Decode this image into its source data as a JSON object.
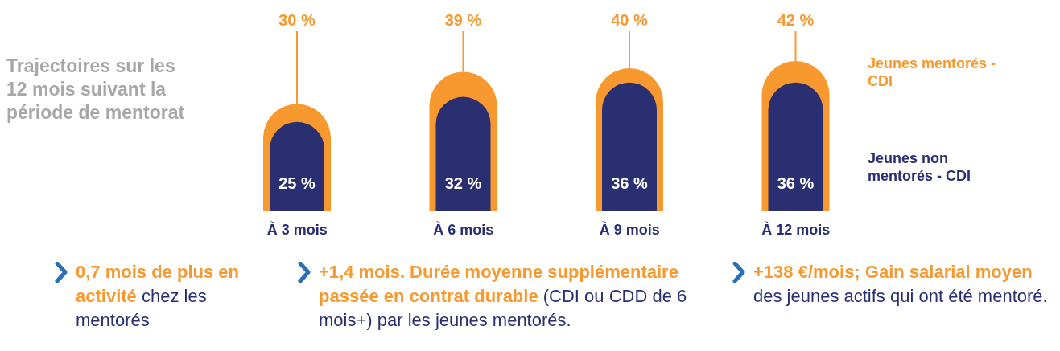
{
  "chart_data": {
    "type": "bar",
    "title": "Trajectoires sur les 12 mois suivant la période de mentorat",
    "categories": [
      "À 3 mois",
      "À 6 mois",
      "À 9 mois",
      "À 12 mois"
    ],
    "series": [
      {
        "name": "Jeunes mentorés - CDI",
        "color": "#f7992f",
        "values": [
          30,
          39,
          40,
          42
        ],
        "value_labels": [
          "30 %",
          "39 %",
          "40 %",
          "42 %"
        ]
      },
      {
        "name": "Jeunes non mentorés - CDI",
        "color": "#2a2f72",
        "values": [
          25,
          32,
          36,
          36
        ],
        "value_labels": [
          "25 %",
          "32 %",
          "36 %",
          "36 %"
        ]
      }
    ],
    "legend": "right",
    "grid": false,
    "annotations": [
      "0,7 mois de plus en activité",
      " chez les mentorés",
      "+1,4 mois. Durée moyenne supplémentaire passée en contrat durable",
      " (CDI ou CDD de 6 mois+) par les jeunes mentorés.",
      "+138 €/mois; Gain salarial moyen",
      " des jeunes actifs qui ont été mentoré."
    ]
  }
}
